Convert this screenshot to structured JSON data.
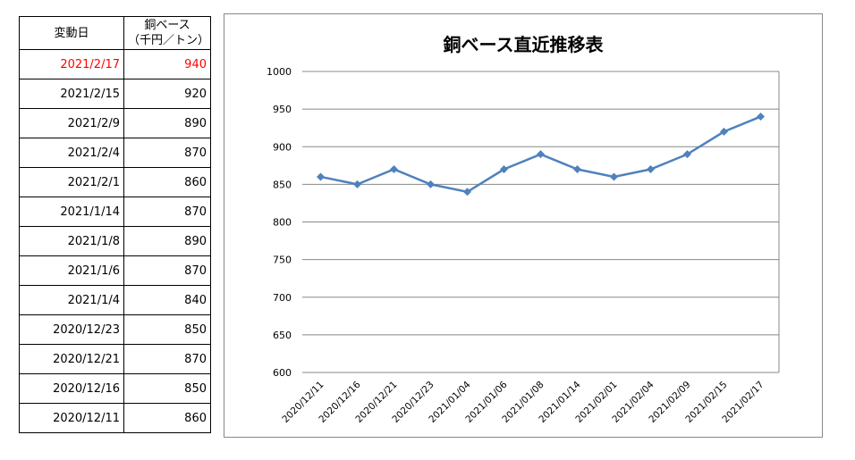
{
  "table": {
    "headers": [
      "変動日",
      "銅ベース",
      "（千円／トン）"
    ],
    "rows": [
      {
        "date": "2021/2/17",
        "value": "940"
      },
      {
        "date": "2021/2/15",
        "value": "920"
      },
      {
        "date": "2021/2/9",
        "value": "890"
      },
      {
        "date": "2021/2/4",
        "value": "870"
      },
      {
        "date": "2021/2/1",
        "value": "860"
      },
      {
        "date": "2021/1/14",
        "value": "870"
      },
      {
        "date": "2021/1/8",
        "value": "890"
      },
      {
        "date": "2021/1/6",
        "value": "870"
      },
      {
        "date": "2021/1/4",
        "value": "840"
      },
      {
        "date": "2020/12/23",
        "value": "850"
      },
      {
        "date": "2020/12/21",
        "value": "870"
      },
      {
        "date": "2020/12/16",
        "value": "850"
      },
      {
        "date": "2020/12/11",
        "value": "860"
      }
    ],
    "highlight_color": "#ff0000"
  },
  "chart_data": {
    "type": "line",
    "title": "銅ベース直近推移表",
    "categories": [
      "2020/12/11",
      "2020/12/16",
      "2020/12/21",
      "2020/12/23",
      "2021/01/04",
      "2021/01/06",
      "2021/01/08",
      "2021/01/14",
      "2021/02/01",
      "2021/02/04",
      "2021/02/09",
      "2021/02/15",
      "2021/02/17"
    ],
    "values": [
      860,
      850,
      870,
      850,
      840,
      870,
      890,
      870,
      860,
      870,
      890,
      920,
      940
    ],
    "ylim": [
      600,
      1000
    ],
    "yticks": [
      600,
      650,
      700,
      750,
      800,
      850,
      900,
      950,
      1000
    ],
    "grid": true,
    "marker": "diamond",
    "color": "#4f81bd"
  }
}
